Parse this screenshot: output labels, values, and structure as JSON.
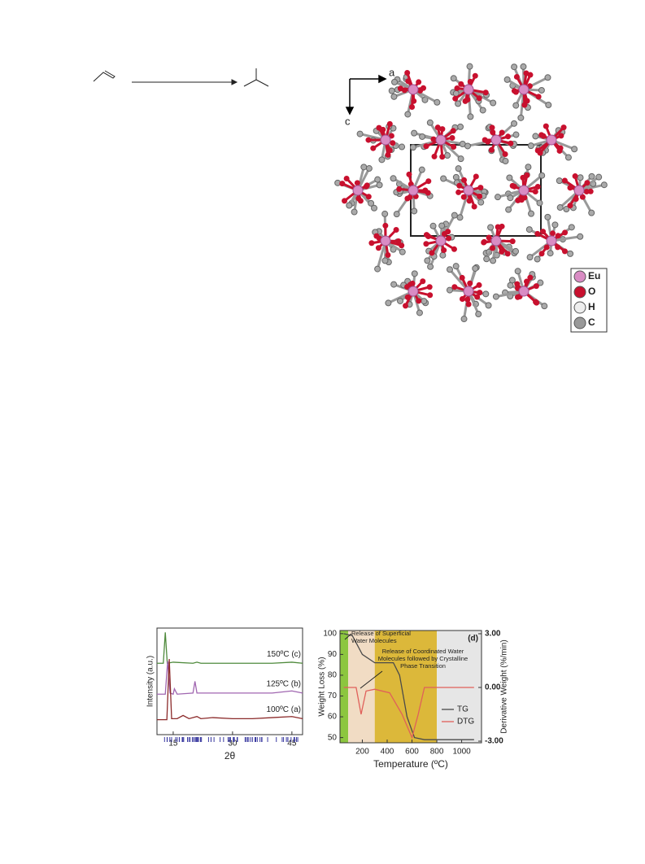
{
  "structure": {
    "axes": [
      "a",
      "c"
    ],
    "legend": [
      "Eu",
      "O",
      "H",
      "C"
    ]
  },
  "chart_data": [
    {
      "type": "line",
      "x_label": "2θ",
      "y_label": "Intensity (a.u.)",
      "xlim": [
        10.9,
        47.7
      ],
      "xticks": [
        15,
        30,
        45
      ],
      "ylim": [
        0,
        100
      ],
      "series": [
        {
          "name": "150ºC (c)",
          "color": "#4f8a3c",
          "x": [
            10.9,
            12.5,
            13,
            13.5,
            15,
            20,
            21,
            22,
            30,
            40,
            45,
            47.7
          ],
          "values": [
            67,
            67,
            96,
            67,
            68,
            67,
            68,
            67,
            67,
            67,
            68,
            67
          ]
        },
        {
          "name": "125ºC (b)",
          "color": "#a066b0",
          "x": [
            10.9,
            13,
            13.6,
            14.2,
            15,
            15.3,
            16,
            20,
            20.5,
            21,
            25,
            30,
            40,
            45,
            47.7
          ],
          "values": [
            38,
            38,
            69,
            39,
            38,
            43,
            38,
            39,
            50,
            39,
            39,
            39,
            39,
            41,
            39
          ]
        },
        {
          "name": "100ºC (a)",
          "color": "#8b2a2a",
          "x": [
            10.9,
            13.4,
            14,
            14.6,
            16,
            17.5,
            19,
            21,
            22,
            25,
            30,
            35,
            40,
            45,
            47.7
          ],
          "values": [
            14,
            14,
            71,
            15,
            15,
            18,
            15,
            17,
            15,
            16,
            15,
            15,
            16,
            17,
            15
          ]
        }
      ]
    },
    {
      "type": "line",
      "title": "(d)",
      "x_label": "Temperature (ºC)",
      "y_label": "Weight Loss (%)",
      "y2_label": "Derivative Weight (%/min)",
      "xlim": [
        20,
        1160
      ],
      "xticks": [
        200,
        400,
        600,
        800,
        1000
      ],
      "ylim": [
        47.5,
        101.5
      ],
      "yticks": [
        50,
        60,
        70,
        80,
        90,
        100
      ],
      "y2lim": [
        -3.09,
        3.18
      ],
      "y2ticks": [
        {
          "value": 3,
          "label": "3.00"
        },
        {
          "value": 0,
          "label": "0.00"
        },
        {
          "value": -3,
          "label": "-3.00"
        }
      ],
      "regions": [
        {
          "range": [
            20,
            86
          ],
          "color": "#8cc63f"
        },
        {
          "range": [
            86,
            300
          ],
          "color": "#f1dcc4"
        },
        {
          "range": [
            300,
            800
          ],
          "color": "#dcb83a"
        },
        {
          "range": [
            800,
            1160
          ],
          "color": "#e6e6e6"
        }
      ],
      "annotations": [
        [
          "Release of Superficial",
          "Water Molecules"
        ],
        [
          "Release of Coordinated Water",
          "Molecules followed by Crystalline",
          "Phase  Transition"
        ]
      ],
      "legend": "right",
      "series": [
        {
          "name": "TG",
          "color": "#4a4a4a",
          "x": [
            50,
            120,
            200,
            300,
            450,
            500,
            560,
            620,
            700,
            1100
          ],
          "values": [
            100,
            99,
            90,
            86,
            86,
            80,
            60,
            50,
            49,
            49
          ]
        },
        {
          "name": "DTG",
          "color": "#e0605a",
          "axis": "y2",
          "x": [
            50,
            150,
            190,
            230,
            300,
            420,
            520,
            600,
            650,
            700,
            1100
          ],
          "values": [
            0,
            0,
            -1.5,
            -0.2,
            -0.1,
            -0.3,
            -1.5,
            -2.8,
            -1.5,
            0,
            0
          ]
        }
      ]
    }
  ]
}
